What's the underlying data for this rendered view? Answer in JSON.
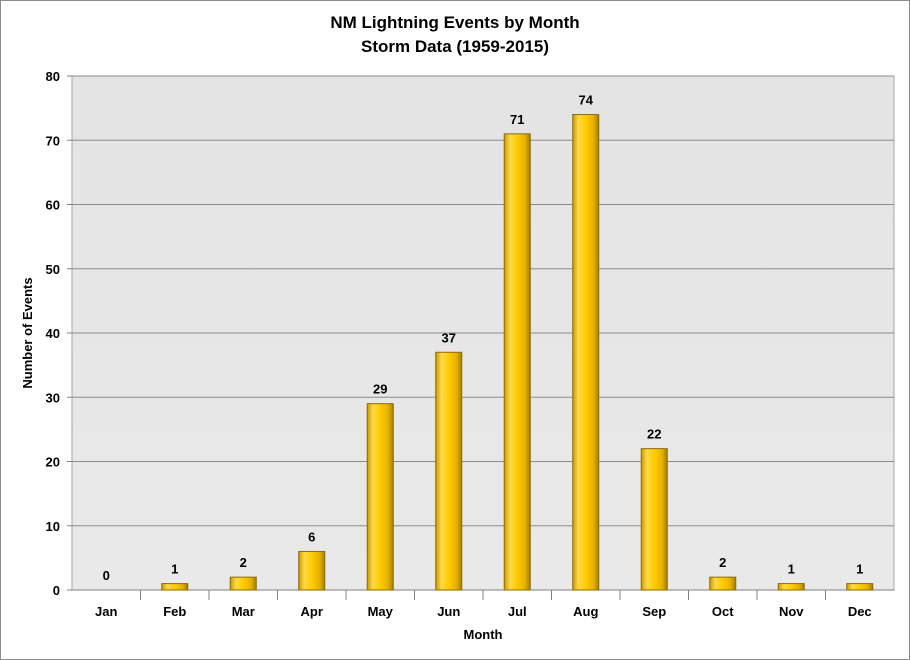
{
  "chart_data": {
    "type": "bar",
    "title": "NM Lightning Events by Month",
    "subtitle": "Storm Data (1959-2015)",
    "xlabel": "Month",
    "ylabel": "Number of Events",
    "categories": [
      "Jan",
      "Feb",
      "Mar",
      "Apr",
      "May",
      "Jun",
      "Jul",
      "Aug",
      "Sep",
      "Oct",
      "Nov",
      "Dec"
    ],
    "values": [
      0,
      1,
      2,
      6,
      29,
      37,
      71,
      74,
      22,
      2,
      1,
      1
    ],
    "ylim": [
      0,
      80
    ],
    "yticks": [
      0,
      10,
      20,
      30,
      40,
      50,
      60,
      70,
      80
    ],
    "grid": true,
    "legend": "none",
    "colors": {
      "bar_fill": "#ffcc00",
      "bar_edge": "#8a6d00",
      "plot_bg": "#e6e6e6",
      "gridline": "#8c8c8c"
    }
  }
}
